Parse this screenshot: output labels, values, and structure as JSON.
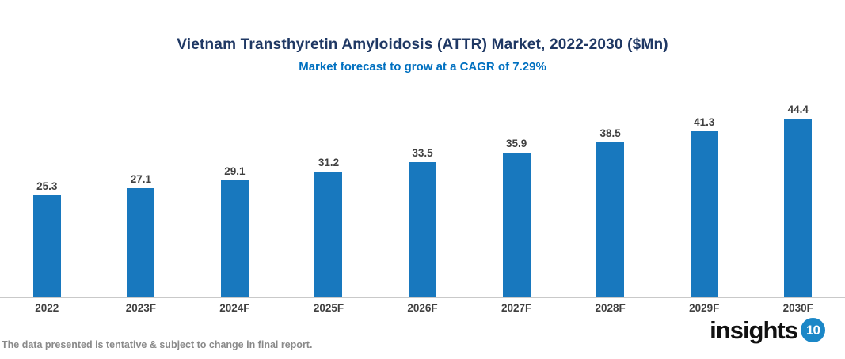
{
  "chart": {
    "title": "Vietnam Transthyretin Amyloidosis (ATTR) Market, 2022-2030 ($Mn)",
    "subtitle": "Market forecast to grow at a CAGR of 7.29%"
  },
  "chart_data": {
    "type": "bar",
    "categories": [
      "2022",
      "2023F",
      "2024F",
      "2025F",
      "2026F",
      "2027F",
      "2028F",
      "2029F",
      "2030F"
    ],
    "values": [
      25.3,
      27.1,
      29.1,
      31.2,
      33.5,
      35.9,
      38.5,
      41.3,
      44.4
    ],
    "title": "Vietnam Transthyretin Amyloidosis (ATTR) Market, 2022-2030 ($Mn)",
    "subtitle": "Market forecast to grow at a CAGR of 7.29%",
    "xlabel": "",
    "ylabel": "",
    "ylim": [
      0,
      50
    ],
    "grid": false,
    "legend": false,
    "data_labels": true,
    "bar_color": "#1878BE"
  },
  "colors": {
    "title": "#1F3864",
    "subtitle": "#0070C0",
    "bar": "#1878BE",
    "data_label": "#404040",
    "axis_line": "#C9C9C9",
    "disclaimer": "#8A8A8A",
    "logo_circle": "#1B87C7"
  },
  "footer": {
    "disclaimer": "The data presented is tentative & subject to change in final report.",
    "logo_text": "insights",
    "logo_number": "10"
  }
}
